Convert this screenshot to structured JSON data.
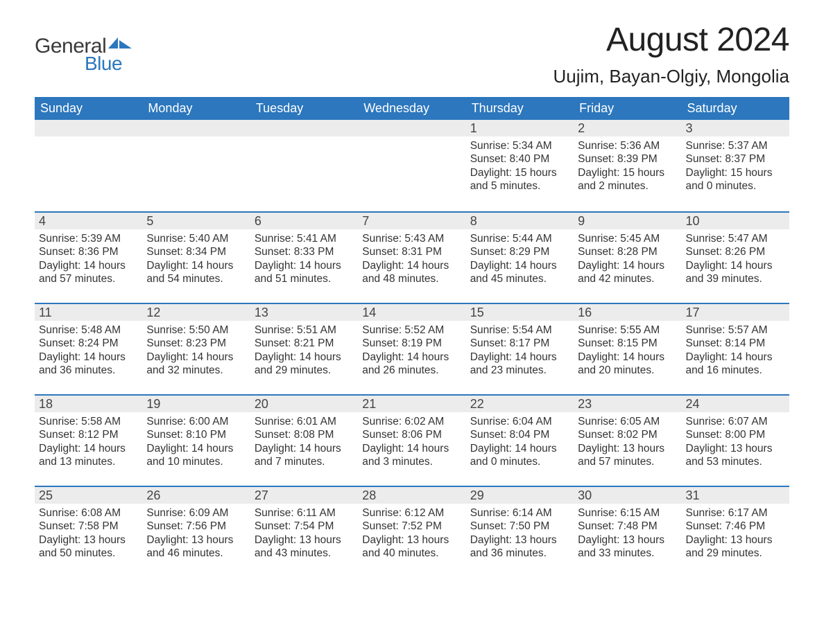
{
  "logo": {
    "text1": "General",
    "text2": "Blue",
    "accent_color": "#2c77bd"
  },
  "title": "August 2024",
  "location": "Uujim, Bayan-Olgiy, Mongolia",
  "colors": {
    "header_bg": "#2c77bd",
    "header_text": "#ffffff",
    "daynum_bg": "#ececec",
    "body_text": "#333333",
    "page_bg": "#ffffff"
  },
  "typography": {
    "title_fontsize": 48,
    "location_fontsize": 26,
    "dow_fontsize": 18,
    "daynum_fontsize": 18,
    "body_fontsize": 15.5
  },
  "days_of_week": [
    "Sunday",
    "Monday",
    "Tuesday",
    "Wednesday",
    "Thursday",
    "Friday",
    "Saturday"
  ],
  "weeks": [
    [
      {
        "n": "",
        "sunrise": "",
        "sunset": "",
        "daylight1": "",
        "daylight2": ""
      },
      {
        "n": "",
        "sunrise": "",
        "sunset": "",
        "daylight1": "",
        "daylight2": ""
      },
      {
        "n": "",
        "sunrise": "",
        "sunset": "",
        "daylight1": "",
        "daylight2": ""
      },
      {
        "n": "",
        "sunrise": "",
        "sunset": "",
        "daylight1": "",
        "daylight2": ""
      },
      {
        "n": "1",
        "sunrise": "Sunrise: 5:34 AM",
        "sunset": "Sunset: 8:40 PM",
        "daylight1": "Daylight: 15 hours",
        "daylight2": "and 5 minutes."
      },
      {
        "n": "2",
        "sunrise": "Sunrise: 5:36 AM",
        "sunset": "Sunset: 8:39 PM",
        "daylight1": "Daylight: 15 hours",
        "daylight2": "and 2 minutes."
      },
      {
        "n": "3",
        "sunrise": "Sunrise: 5:37 AM",
        "sunset": "Sunset: 8:37 PM",
        "daylight1": "Daylight: 15 hours",
        "daylight2": "and 0 minutes."
      }
    ],
    [
      {
        "n": "4",
        "sunrise": "Sunrise: 5:39 AM",
        "sunset": "Sunset: 8:36 PM",
        "daylight1": "Daylight: 14 hours",
        "daylight2": "and 57 minutes."
      },
      {
        "n": "5",
        "sunrise": "Sunrise: 5:40 AM",
        "sunset": "Sunset: 8:34 PM",
        "daylight1": "Daylight: 14 hours",
        "daylight2": "and 54 minutes."
      },
      {
        "n": "6",
        "sunrise": "Sunrise: 5:41 AM",
        "sunset": "Sunset: 8:33 PM",
        "daylight1": "Daylight: 14 hours",
        "daylight2": "and 51 minutes."
      },
      {
        "n": "7",
        "sunrise": "Sunrise: 5:43 AM",
        "sunset": "Sunset: 8:31 PM",
        "daylight1": "Daylight: 14 hours",
        "daylight2": "and 48 minutes."
      },
      {
        "n": "8",
        "sunrise": "Sunrise: 5:44 AM",
        "sunset": "Sunset: 8:29 PM",
        "daylight1": "Daylight: 14 hours",
        "daylight2": "and 45 minutes."
      },
      {
        "n": "9",
        "sunrise": "Sunrise: 5:45 AM",
        "sunset": "Sunset: 8:28 PM",
        "daylight1": "Daylight: 14 hours",
        "daylight2": "and 42 minutes."
      },
      {
        "n": "10",
        "sunrise": "Sunrise: 5:47 AM",
        "sunset": "Sunset: 8:26 PM",
        "daylight1": "Daylight: 14 hours",
        "daylight2": "and 39 minutes."
      }
    ],
    [
      {
        "n": "11",
        "sunrise": "Sunrise: 5:48 AM",
        "sunset": "Sunset: 8:24 PM",
        "daylight1": "Daylight: 14 hours",
        "daylight2": "and 36 minutes."
      },
      {
        "n": "12",
        "sunrise": "Sunrise: 5:50 AM",
        "sunset": "Sunset: 8:23 PM",
        "daylight1": "Daylight: 14 hours",
        "daylight2": "and 32 minutes."
      },
      {
        "n": "13",
        "sunrise": "Sunrise: 5:51 AM",
        "sunset": "Sunset: 8:21 PM",
        "daylight1": "Daylight: 14 hours",
        "daylight2": "and 29 minutes."
      },
      {
        "n": "14",
        "sunrise": "Sunrise: 5:52 AM",
        "sunset": "Sunset: 8:19 PM",
        "daylight1": "Daylight: 14 hours",
        "daylight2": "and 26 minutes."
      },
      {
        "n": "15",
        "sunrise": "Sunrise: 5:54 AM",
        "sunset": "Sunset: 8:17 PM",
        "daylight1": "Daylight: 14 hours",
        "daylight2": "and 23 minutes."
      },
      {
        "n": "16",
        "sunrise": "Sunrise: 5:55 AM",
        "sunset": "Sunset: 8:15 PM",
        "daylight1": "Daylight: 14 hours",
        "daylight2": "and 20 minutes."
      },
      {
        "n": "17",
        "sunrise": "Sunrise: 5:57 AM",
        "sunset": "Sunset: 8:14 PM",
        "daylight1": "Daylight: 14 hours",
        "daylight2": "and 16 minutes."
      }
    ],
    [
      {
        "n": "18",
        "sunrise": "Sunrise: 5:58 AM",
        "sunset": "Sunset: 8:12 PM",
        "daylight1": "Daylight: 14 hours",
        "daylight2": "and 13 minutes."
      },
      {
        "n": "19",
        "sunrise": "Sunrise: 6:00 AM",
        "sunset": "Sunset: 8:10 PM",
        "daylight1": "Daylight: 14 hours",
        "daylight2": "and 10 minutes."
      },
      {
        "n": "20",
        "sunrise": "Sunrise: 6:01 AM",
        "sunset": "Sunset: 8:08 PM",
        "daylight1": "Daylight: 14 hours",
        "daylight2": "and 7 minutes."
      },
      {
        "n": "21",
        "sunrise": "Sunrise: 6:02 AM",
        "sunset": "Sunset: 8:06 PM",
        "daylight1": "Daylight: 14 hours",
        "daylight2": "and 3 minutes."
      },
      {
        "n": "22",
        "sunrise": "Sunrise: 6:04 AM",
        "sunset": "Sunset: 8:04 PM",
        "daylight1": "Daylight: 14 hours",
        "daylight2": "and 0 minutes."
      },
      {
        "n": "23",
        "sunrise": "Sunrise: 6:05 AM",
        "sunset": "Sunset: 8:02 PM",
        "daylight1": "Daylight: 13 hours",
        "daylight2": "and 57 minutes."
      },
      {
        "n": "24",
        "sunrise": "Sunrise: 6:07 AM",
        "sunset": "Sunset: 8:00 PM",
        "daylight1": "Daylight: 13 hours",
        "daylight2": "and 53 minutes."
      }
    ],
    [
      {
        "n": "25",
        "sunrise": "Sunrise: 6:08 AM",
        "sunset": "Sunset: 7:58 PM",
        "daylight1": "Daylight: 13 hours",
        "daylight2": "and 50 minutes."
      },
      {
        "n": "26",
        "sunrise": "Sunrise: 6:09 AM",
        "sunset": "Sunset: 7:56 PM",
        "daylight1": "Daylight: 13 hours",
        "daylight2": "and 46 minutes."
      },
      {
        "n": "27",
        "sunrise": "Sunrise: 6:11 AM",
        "sunset": "Sunset: 7:54 PM",
        "daylight1": "Daylight: 13 hours",
        "daylight2": "and 43 minutes."
      },
      {
        "n": "28",
        "sunrise": "Sunrise: 6:12 AM",
        "sunset": "Sunset: 7:52 PM",
        "daylight1": "Daylight: 13 hours",
        "daylight2": "and 40 minutes."
      },
      {
        "n": "29",
        "sunrise": "Sunrise: 6:14 AM",
        "sunset": "Sunset: 7:50 PM",
        "daylight1": "Daylight: 13 hours",
        "daylight2": "and 36 minutes."
      },
      {
        "n": "30",
        "sunrise": "Sunrise: 6:15 AM",
        "sunset": "Sunset: 7:48 PM",
        "daylight1": "Daylight: 13 hours",
        "daylight2": "and 33 minutes."
      },
      {
        "n": "31",
        "sunrise": "Sunrise: 6:17 AM",
        "sunset": "Sunset: 7:46 PM",
        "daylight1": "Daylight: 13 hours",
        "daylight2": "and 29 minutes."
      }
    ]
  ]
}
